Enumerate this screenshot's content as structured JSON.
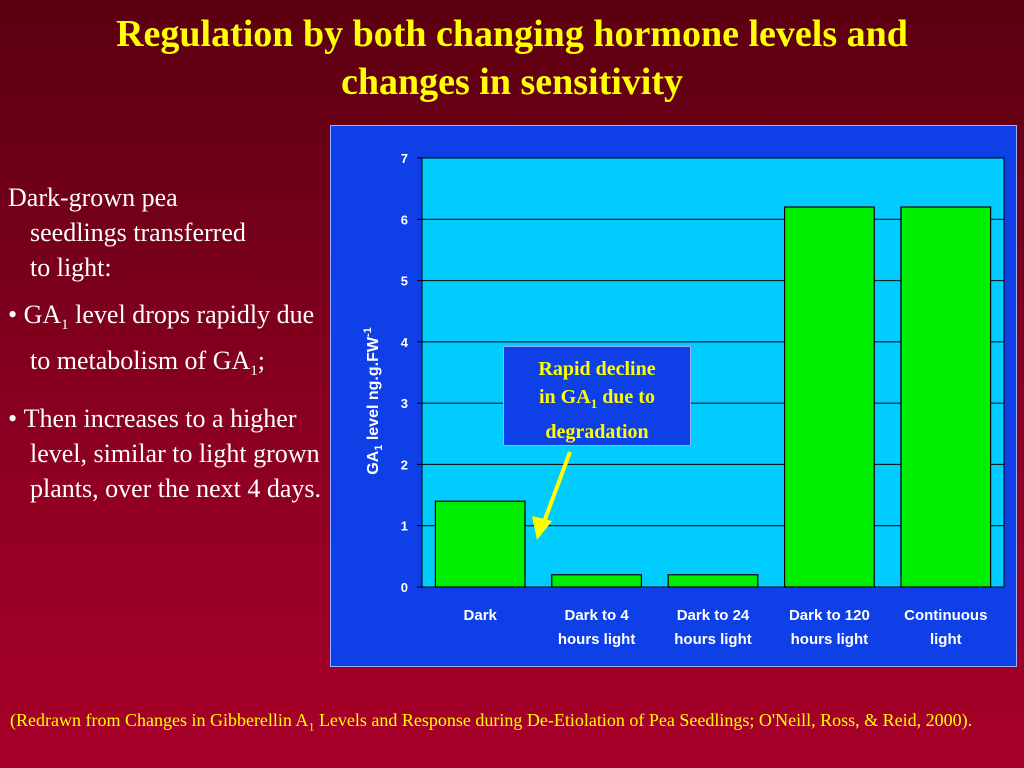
{
  "slide": {
    "title_line1": "Regulation by both changing hormone levels and",
    "title_line2": "changes in sensitivity",
    "intro_line1": "Dark-grown pea",
    "intro_line2": "seedlings transferred",
    "intro_line3": "to light:",
    "bullet1_a": "GA",
    "bullet1_sub": "1",
    "bullet1_b": " level drops rapidly due to metabolism of GA",
    "bullet1_sub2": "1",
    "bullet1_c": ";",
    "bullet2": "Then increases to a higher level, similar to light grown plants, over the next 4 days.",
    "citation_a": "(Redrawn from Changes in Gibberellin A",
    "citation_sub": "1",
    "citation_b": " Levels and Response during De-Etiolation of Pea Seedlings; O'Neill, Ross, & Reid, 2000)."
  },
  "callout": {
    "line1": "Rapid decline",
    "line2a": "in GA",
    "line2_sub": "1",
    "line2b": " due to",
    "line3": "degradation"
  },
  "colors": {
    "bar_fill": "#00ee00",
    "plot_bg": "#00ccff",
    "frame_bg": "#0f3fe6",
    "title": "#ffff00",
    "arrow": "#ffff00"
  },
  "chart_data": {
    "type": "bar",
    "categories": [
      [
        "Dark"
      ],
      [
        "Dark to 4",
        "hours light"
      ],
      [
        "Dark to 24",
        "hours light"
      ],
      [
        "Dark to 120",
        "hours light"
      ],
      [
        "Continuous",
        "light"
      ]
    ],
    "values": [
      1.4,
      0.2,
      0.2,
      6.2,
      6.2
    ],
    "ylabel_a": "GA",
    "ylabel_sub": "1",
    "ylabel_b": "  level ng.g.FW",
    "ylabel_sup": "-1",
    "ylim": [
      0,
      7
    ],
    "yticks": [
      0,
      1,
      2,
      3,
      4,
      5,
      6,
      7
    ],
    "grid": true
  }
}
